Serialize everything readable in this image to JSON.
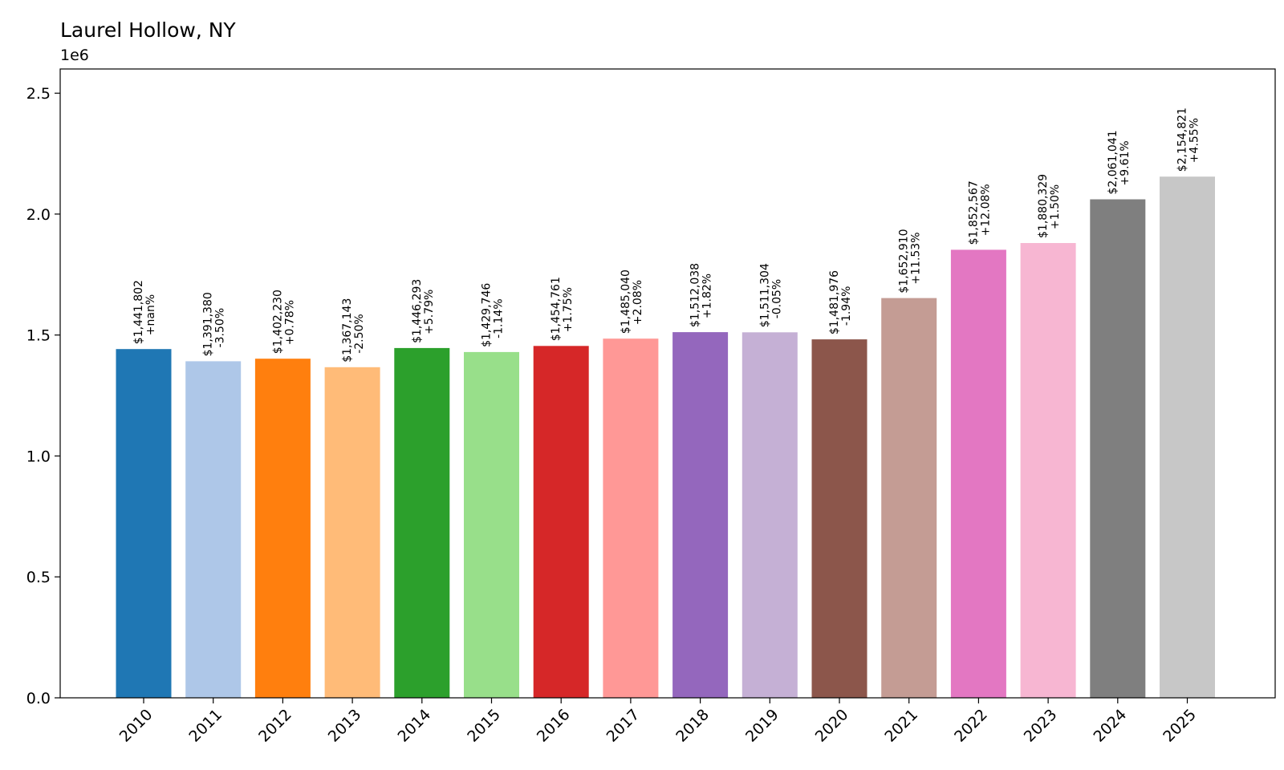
{
  "chart_data": {
    "type": "bar",
    "title": "Laurel Hollow, NY",
    "xlabel": "",
    "ylabel": "",
    "y_offset_text": "1e6",
    "y_scale": 1000000,
    "ylim": [
      0,
      2.6
    ],
    "yticks": [
      0.0,
      0.5,
      1.0,
      1.5,
      2.0,
      2.5
    ],
    "ytick_labels": [
      "0.0",
      "0.5",
      "1.0",
      "1.5",
      "2.0",
      "2.5"
    ],
    "grid": false,
    "categories": [
      "2010",
      "2011",
      "2012",
      "2013",
      "2014",
      "2015",
      "2016",
      "2017",
      "2018",
      "2019",
      "2020",
      "2021",
      "2022",
      "2023",
      "2024",
      "2025"
    ],
    "values": [
      1441802,
      1391380,
      1402230,
      1367143,
      1446293,
      1429746,
      1454761,
      1485040,
      1512038,
      1511304,
      1481976,
      1652910,
      1852567,
      1880329,
      2061041,
      2154821
    ],
    "value_labels": [
      "$1,441,802",
      "$1,391,380",
      "$1,402,230",
      "$1,367,143",
      "$1,446,293",
      "$1,429,746",
      "$1,454,761",
      "$1,485,040",
      "$1,512,038",
      "$1,511,304",
      "$1,481,976",
      "$1,652,910",
      "$1,852,567",
      "$1,880,329",
      "$2,061,041",
      "$2,154,821"
    ],
    "change_labels": [
      "+nan%",
      "-3.50%",
      "+0.78%",
      "-2.50%",
      "+5.79%",
      "-1.14%",
      "+1.75%",
      "+2.08%",
      "+1.82%",
      "-0.05%",
      "-1.94%",
      "+11.53%",
      "+12.08%",
      "+1.50%",
      "+9.61%",
      "+4.55%"
    ],
    "colors": [
      "#1f77b4",
      "#aec7e8",
      "#ff7f0e",
      "#ffbb78",
      "#2ca02c",
      "#98df8a",
      "#d62728",
      "#ff9896",
      "#9467bd",
      "#c5b0d5",
      "#8c564b",
      "#c49c94",
      "#e377c2",
      "#f7b6d2",
      "#7f7f7f",
      "#c7c7c7"
    ]
  }
}
